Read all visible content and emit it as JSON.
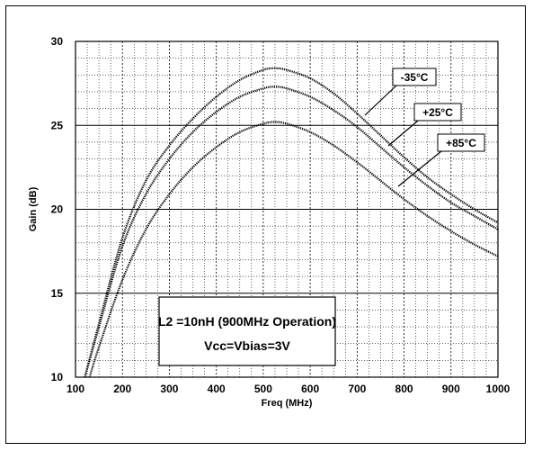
{
  "chart_data": {
    "type": "line",
    "xlabel": "Freq (MHz)",
    "ylabel": "Gain (dB)",
    "xlim": [
      100,
      1000
    ],
    "ylim": [
      10,
      30
    ],
    "x_ticks": [
      100,
      200,
      300,
      400,
      500,
      600,
      700,
      800,
      900,
      1000
    ],
    "y_ticks": [
      10,
      15,
      20,
      25,
      30
    ],
    "grid": true,
    "annotation_lines": [
      "L2 =10nH (900MHz Operation)",
      "Vcc=Vbias=3V"
    ],
    "series": [
      {
        "name": "-35°C",
        "x": [
          120,
          150,
          200,
          250,
          300,
          350,
          400,
          450,
          500,
          525,
          550,
          600,
          650,
          700,
          750,
          800,
          850,
          900,
          950,
          1000
        ],
        "y": [
          10.0,
          13.2,
          18.3,
          21.7,
          23.8,
          25.4,
          26.7,
          27.7,
          28.3,
          28.4,
          28.3,
          27.8,
          26.9,
          25.7,
          24.4,
          23.1,
          21.9,
          20.9,
          20.0,
          19.2
        ]
      },
      {
        "name": "+25°C",
        "x": [
          120,
          150,
          200,
          250,
          300,
          350,
          400,
          450,
          500,
          525,
          550,
          600,
          650,
          700,
          750,
          800,
          850,
          900,
          950,
          1000
        ],
        "y": [
          10.0,
          13.0,
          17.8,
          20.9,
          23.0,
          24.6,
          25.8,
          26.7,
          27.2,
          27.3,
          27.2,
          26.7,
          25.9,
          24.9,
          23.7,
          22.5,
          21.4,
          20.4,
          19.6,
          18.8
        ]
      },
      {
        "name": "+85°C",
        "x": [
          130,
          150,
          200,
          250,
          300,
          350,
          400,
          450,
          500,
          525,
          550,
          600,
          650,
          700,
          750,
          800,
          850,
          900,
          950,
          1000
        ],
        "y": [
          10.0,
          11.8,
          15.8,
          18.8,
          20.9,
          22.5,
          23.7,
          24.6,
          25.1,
          25.2,
          25.1,
          24.6,
          23.8,
          22.8,
          21.7,
          20.6,
          19.6,
          18.7,
          17.9,
          17.2
        ]
      }
    ],
    "colors": {
      "axis": "#000000",
      "grid": "#000000",
      "series": "#000000"
    }
  }
}
